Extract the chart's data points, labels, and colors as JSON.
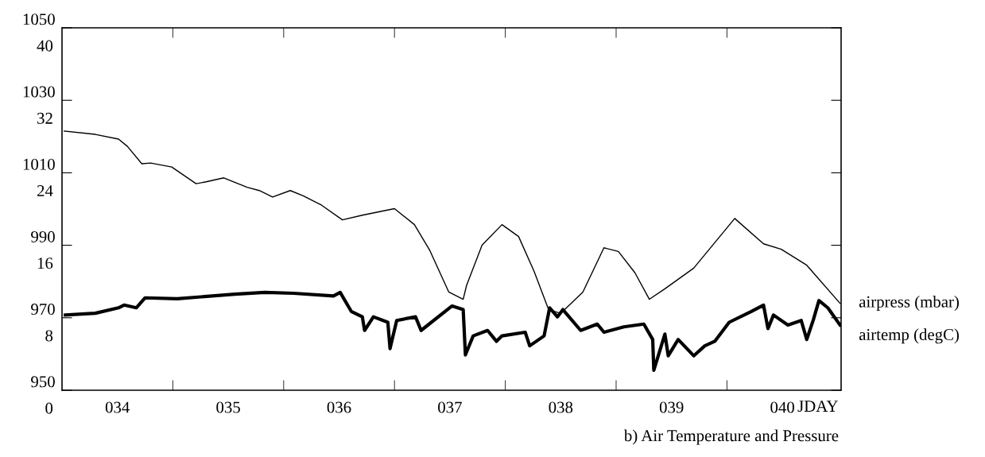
{
  "chart_data": {
    "type": "line",
    "title": "b) Air Temperature and Pressure",
    "xlabel": "JDAY",
    "xlim": [
      33.5,
      40.53
    ],
    "xticks": [
      {
        "value": 34,
        "label": "034"
      },
      {
        "value": 34.5,
        "label": null
      },
      {
        "value": 35,
        "label": "035"
      },
      {
        "value": 35.5,
        "label": null
      },
      {
        "value": 36,
        "label": "036"
      },
      {
        "value": 36.5,
        "label": null
      },
      {
        "value": 37,
        "label": "037"
      },
      {
        "value": 37.5,
        "label": null
      },
      {
        "value": 38,
        "label": "038"
      },
      {
        "value": 38.5,
        "label": null
      },
      {
        "value": 39,
        "label": "039"
      },
      {
        "value": 39.5,
        "label": null
      },
      {
        "value": 40,
        "label": "040"
      }
    ],
    "ylim": [
      950,
      1050
    ],
    "yticks": [
      950,
      970,
      990,
      1010,
      1030,
      1050
    ],
    "y2lim": [
      0,
      40
    ],
    "y2ticks": [
      0,
      8,
      16,
      24,
      32,
      40
    ],
    "legend": false,
    "grid": false,
    "marker": "none",
    "line_style": "solid",
    "series": [
      {
        "name": "airpress (mbar)",
        "color": "#000000",
        "x": [
          33.52,
          33.8,
          34.01,
          34.09,
          34.22,
          34.3,
          34.49,
          34.71,
          34.8,
          34.96,
          35.17,
          35.28,
          35.4,
          35.56,
          35.68,
          35.84,
          36.03,
          36.21,
          36.5,
          36.68,
          36.82,
          36.99,
          37.12,
          37.15,
          37.29,
          37.47,
          37.62,
          37.76,
          37.89,
          38.0,
          38.2,
          38.39,
          38.52,
          38.67,
          38.8,
          38.94,
          39.2,
          39.57,
          39.83,
          39.99,
          40.22,
          40.52
        ],
        "values": [
          1021.5,
          1020.6,
          1019.3,
          1017.3,
          1012.5,
          1012.7,
          1011.6,
          1007.0,
          1007.5,
          1008.6,
          1006.0,
          1005.1,
          1003.3,
          1005.1,
          1003.6,
          1001.1,
          997.0,
          998.3,
          1000.1,
          995.7,
          988.5,
          977.1,
          975.1,
          978.9,
          990.0,
          995.7,
          992.4,
          982.8,
          972.3,
          971.2,
          977.1,
          989.3,
          988.3,
          982.4,
          975.1,
          978.0,
          983.7,
          997.4,
          990.4,
          988.9,
          984.5,
          974.0
        ]
      },
      {
        "name": "airtemp (degC)",
        "color": "#000000",
        "axis": "y2",
        "x": [
          33.53,
          33.8,
          34.01,
          34.06,
          34.17,
          34.25,
          34.54,
          35.06,
          35.33,
          35.59,
          35.95,
          36.01,
          36.11,
          36.21,
          36.23,
          36.31,
          36.44,
          36.46,
          36.52,
          36.69,
          36.74,
          37.02,
          37.12,
          37.14,
          37.21,
          37.34,
          37.42,
          37.47,
          37.68,
          37.72,
          37.85,
          37.9,
          37.97,
          38.02,
          38.18,
          38.33,
          38.39,
          38.57,
          38.75,
          38.83,
          38.84,
          38.94,
          38.97,
          39.06,
          39.2,
          39.3,
          39.39,
          39.52,
          39.72,
          39.83,
          39.87,
          39.92,
          40.05,
          40.17,
          40.22,
          40.28,
          40.33,
          40.41,
          40.52
        ],
        "values": [
          8.3,
          8.5,
          9.1,
          9.4,
          9.1,
          10.2,
          10.1,
          10.6,
          10.8,
          10.7,
          10.4,
          10.8,
          8.7,
          8.1,
          6.6,
          8.1,
          7.5,
          4.6,
          7.7,
          8.1,
          6.6,
          9.3,
          8.9,
          3.9,
          6.0,
          6.6,
          5.4,
          6.0,
          6.4,
          4.9,
          6.0,
          9.1,
          8.1,
          8.9,
          6.6,
          7.3,
          6.4,
          7.0,
          7.3,
          5.6,
          2.2,
          6.2,
          3.8,
          5.6,
          3.8,
          4.9,
          5.4,
          7.5,
          8.7,
          9.4,
          6.8,
          8.3,
          7.2,
          7.7,
          5.6,
          7.8,
          9.9,
          9.1,
          7.2
        ]
      }
    ]
  }
}
